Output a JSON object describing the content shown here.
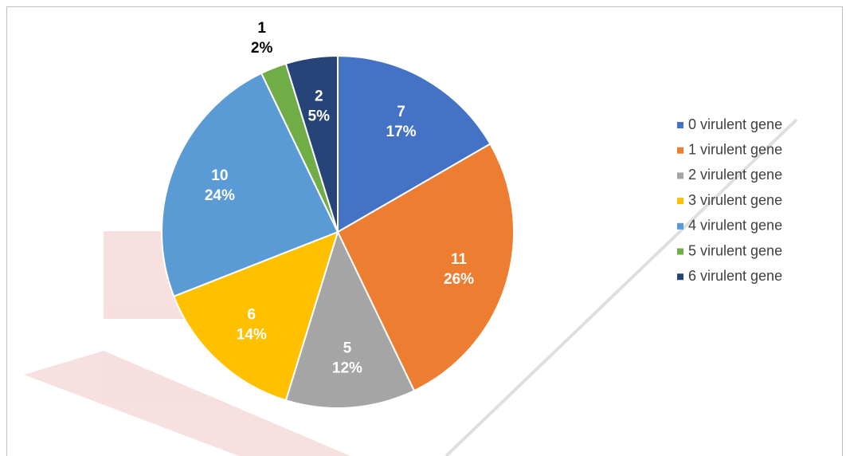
{
  "chart_data": {
    "type": "pie",
    "categories": [
      "0 virulent gene",
      "1 virulent gene",
      "2 virulent gene",
      "3 virulent gene",
      "4 virulent gene",
      "5 virulent gene",
      "6 virulent gene"
    ],
    "values": [
      7,
      11,
      5,
      6,
      10,
      1,
      2
    ],
    "percent_labels": [
      "17%",
      "26%",
      "12%",
      "14%",
      "24%",
      "2%",
      "5%"
    ],
    "colors": [
      "#4472c4",
      "#ed7d31",
      "#a5a5a5",
      "#ffc000",
      "#5b9bd5",
      "#70ad47",
      "#264478"
    ],
    "legend": "right"
  }
}
